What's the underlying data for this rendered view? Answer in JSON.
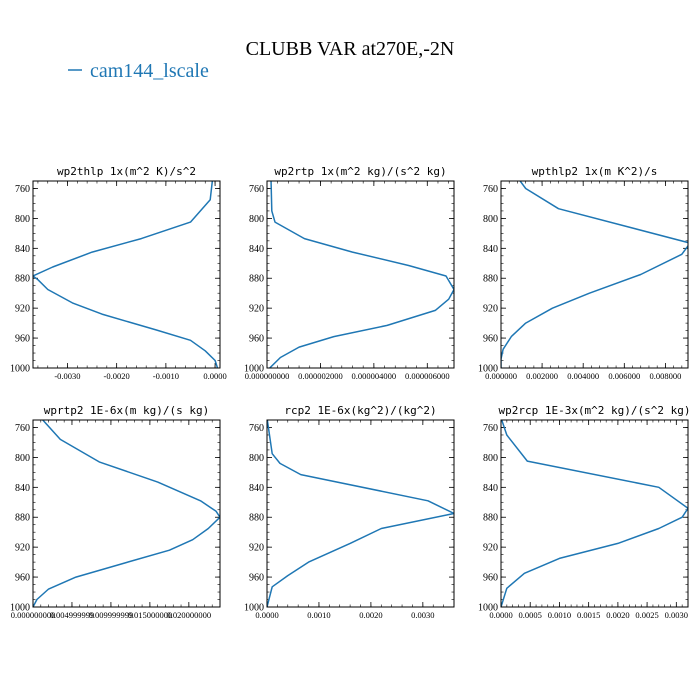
{
  "figure": {
    "title": "CLUBB VAR at270E,-2N",
    "legend_label": "cam144_lscale",
    "line_color": "#1f77b4"
  },
  "chart_data": [
    {
      "type": "line",
      "title": "wp2thlp  1x(m^2 K)/s^2",
      "xlim": [
        -0.0037,
        0.0001
      ],
      "ylim": [
        1000,
        750
      ],
      "xticks": [
        -0.003,
        -0.002,
        -0.001,
        0.0
      ],
      "xtick_labels": [
        "-0.0030",
        "-0.0020",
        "-0.0010",
        "0.0000"
      ],
      "yticks": [
        760,
        800,
        840,
        880,
        920,
        960,
        1000
      ],
      "series": [
        {
          "x": [
            -5e-05,
            -0.0001,
            -0.0005,
            -0.0015,
            -0.0025,
            -0.0033,
            -0.0037,
            -0.0036,
            -0.0034,
            -0.0029,
            -0.0023,
            -0.0012,
            -0.0005,
            -0.0002,
            0.0,
            5e-05
          ],
          "y": [
            747,
            775,
            805,
            827,
            845,
            865,
            877,
            882,
            895,
            913,
            928,
            949,
            963,
            977,
            990,
            1000
          ]
        }
      ]
    },
    {
      "type": "line",
      "title": "wp2rtp  1x(m^2 kg)/(s^2 kg)",
      "xlim": [
        0.0,
        7e-06
      ],
      "ylim": [
        1000,
        750
      ],
      "xticks": [
        0.0,
        2e-06,
        4e-06,
        6e-06
      ],
      "xtick_labels": [
        "0.000000000",
        "0.000002000",
        "0.000004000",
        "0.000006000"
      ],
      "yticks": [
        760,
        800,
        840,
        880,
        920,
        960,
        1000
      ],
      "series": [
        {
          "x": [
            1.5e-07,
            1.8e-07,
            3e-07,
            1.4e-06,
            3.2e-06,
            5.3e-06,
            6.7e-06,
            7e-06,
            6.8e-06,
            6.3e-06,
            4.5e-06,
            2.5e-06,
            1.2e-06,
            5e-07,
            1e-07
          ],
          "y": [
            747,
            790,
            805,
            827,
            845,
            863,
            877,
            895,
            908,
            923,
            943,
            958,
            972,
            986,
            1000
          ]
        }
      ]
    },
    {
      "type": "line",
      "title": "wpthlp2  1x(m K^2)/s",
      "xlim": [
        0.0,
        0.0091
      ],
      "ylim": [
        1000,
        750
      ],
      "xticks": [
        0.0,
        0.002,
        0.004,
        0.006,
        0.008
      ],
      "xtick_labels": [
        "0.000000",
        "0.002000",
        "0.004000",
        "0.006000",
        "0.008000"
      ],
      "yticks": [
        760,
        800,
        840,
        880,
        920,
        960,
        1000
      ],
      "series": [
        {
          "x": [
            0.00085,
            0.0012,
            0.0028,
            0.0092,
            0.0088,
            0.0068,
            0.0043,
            0.0025,
            0.0012,
            0.0005,
            0.0001,
            0.0,
            0.0
          ],
          "y": [
            747,
            760,
            787,
            833,
            848,
            875,
            900,
            920,
            940,
            958,
            975,
            988,
            1000
          ]
        }
      ]
    },
    {
      "type": "line",
      "title": "wprtp2  1E-6x(m kg)/(s kg)",
      "xlim": [
        0.0,
        0.024
      ],
      "ylim": [
        1000,
        750
      ],
      "xticks": [
        0.0,
        0.005,
        0.01,
        0.015,
        0.02
      ],
      "xtick_labels": [
        "0.000000000",
        "0.004999999",
        "0.009999999",
        "0.015000000",
        "0.020000000"
      ],
      "yticks": [
        760,
        800,
        840,
        880,
        920,
        960,
        1000
      ],
      "series": [
        {
          "x": [
            0.001,
            0.0035,
            0.0085,
            0.016,
            0.0215,
            0.0235,
            0.024,
            0.0225,
            0.0205,
            0.0175,
            0.0115,
            0.0055,
            0.002,
            0.0005,
            0.0
          ],
          "y": [
            747,
            776,
            806,
            833,
            858,
            872,
            880,
            895,
            910,
            924,
            942,
            960,
            976,
            990,
            1000
          ]
        }
      ]
    },
    {
      "type": "line",
      "title": "rcp2  1E-6x(kg^2)/(kg^2)",
      "xlim": [
        0.0,
        0.0036
      ],
      "ylim": [
        1000,
        750
      ],
      "xticks": [
        0.0,
        0.001,
        0.002,
        0.003
      ],
      "xtick_labels": [
        "0.0000",
        "0.0010",
        "0.0020",
        "0.0030"
      ],
      "yticks": [
        760,
        800,
        840,
        880,
        920,
        960,
        1000
      ],
      "series": [
        {
          "x": [
            0.0,
            0.0001,
            0.00025,
            0.00065,
            0.0031,
            0.0036,
            0.0022,
            0.0016,
            0.0008,
            0.0004,
            0.0001,
            0.0
          ],
          "y": [
            747,
            795,
            808,
            823,
            858,
            875,
            895,
            915,
            940,
            958,
            973,
            1000
          ]
        }
      ]
    },
    {
      "type": "line",
      "title": "wp2rcp  1E-3x(m^2 kg)/(s^2 kg)",
      "xlim": [
        0.0,
        0.0032
      ],
      "ylim": [
        1000,
        750
      ],
      "xticks": [
        0.0,
        0.0005,
        0.001,
        0.0015,
        0.002,
        0.0025,
        0.003
      ],
      "xtick_labels": [
        "0.0000",
        "0.0005",
        "0.0010",
        "0.0015",
        "0.0020",
        "0.0025",
        "0.0030"
      ],
      "yticks": [
        760,
        800,
        840,
        880,
        920,
        960,
        1000
      ],
      "series": [
        {
          "x": [
            0.0,
            0.0001,
            0.00045,
            0.0027,
            0.0032,
            0.0031,
            0.0027,
            0.002,
            0.001,
            0.0004,
            0.0001,
            0.0
          ],
          "y": [
            747,
            770,
            805,
            840,
            868,
            880,
            895,
            915,
            935,
            955,
            975,
            1000
          ]
        }
      ]
    }
  ]
}
